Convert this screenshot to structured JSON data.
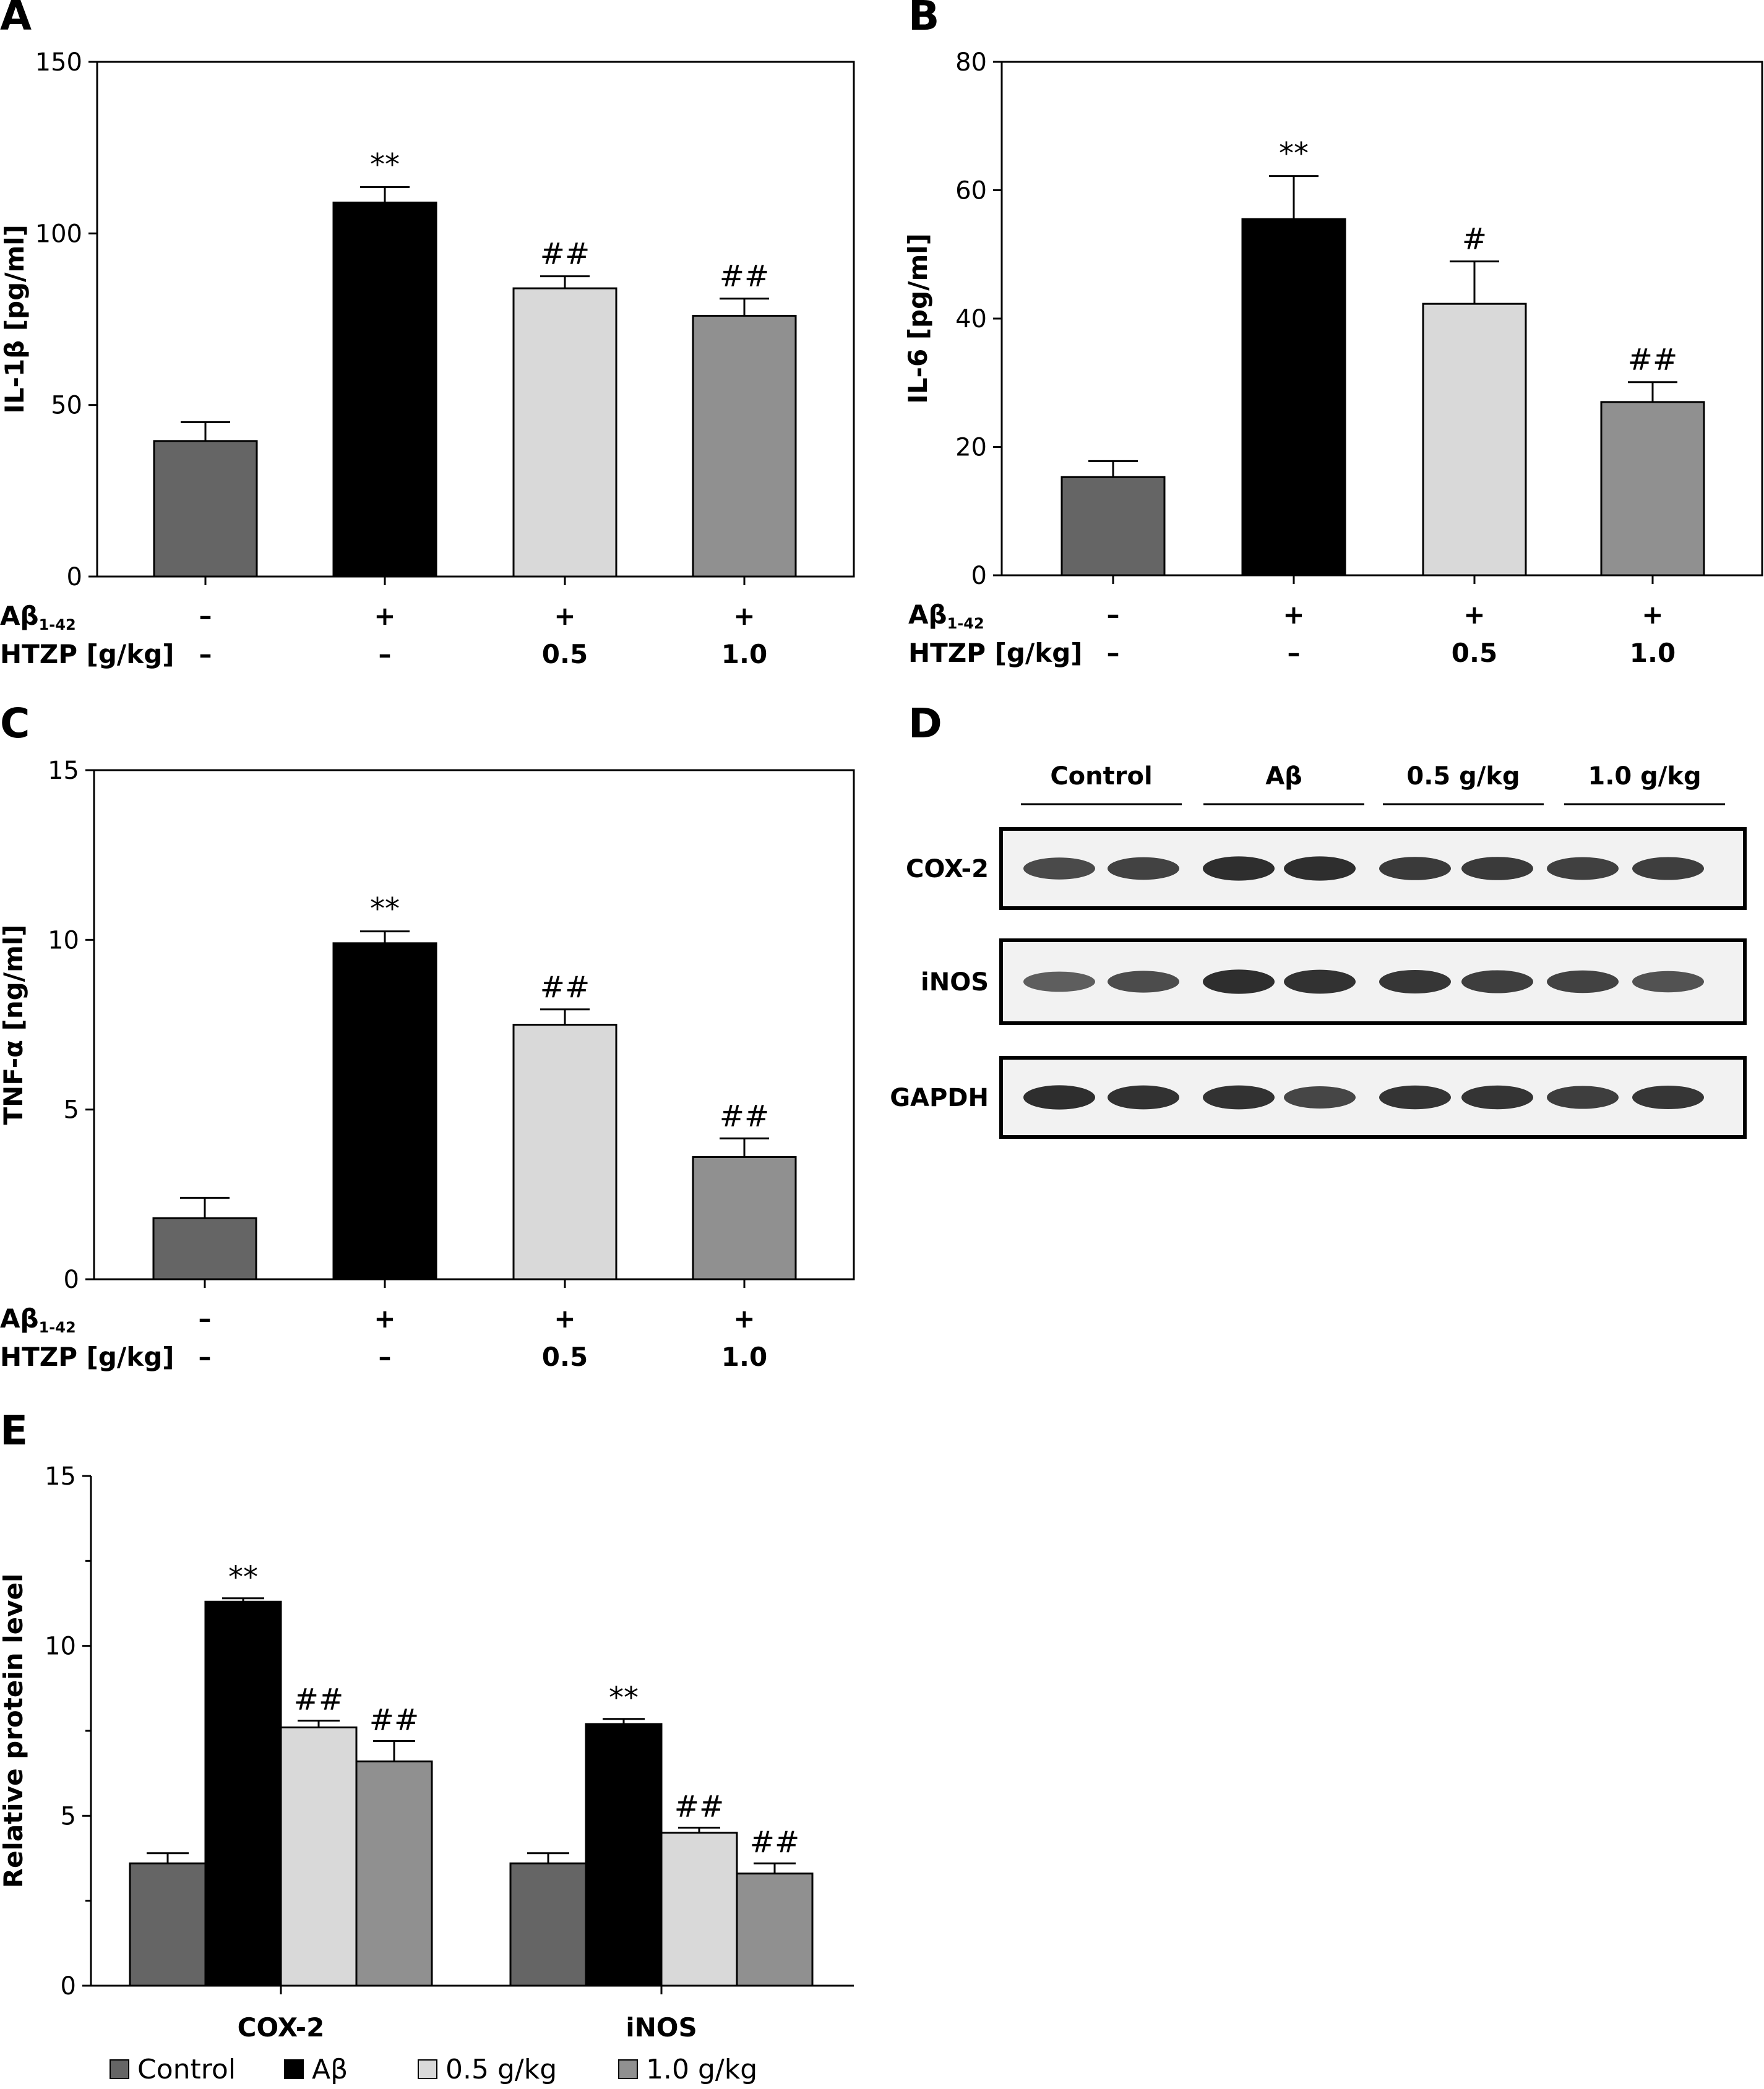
{
  "colors": {
    "control": "#656565",
    "abeta": "#000000",
    "dose_05": "#d9d9d9",
    "dose_10": "#909090",
    "axis": "#000000"
  },
  "conditions": {
    "abeta_row_label": "Aβ",
    "abeta_row_sub": "1-42",
    "htzp_row_label": "HTZP [g/kg]",
    "abeta_values": [
      "–",
      "+",
      "+",
      "+"
    ],
    "htzp_values": [
      "–",
      "–",
      "0.5",
      "1.0"
    ]
  },
  "chart_data": [
    {
      "panel": "A",
      "type": "bar",
      "ylabel": "IL-1β [pg/ml]",
      "ylim": [
        0,
        150
      ],
      "yticks": [
        0,
        50,
        100,
        150
      ],
      "categories": [
        "Control",
        "Aβ",
        "0.5 g/kg",
        "1.0 g/kg"
      ],
      "values": [
        39.5,
        109,
        84,
        76
      ],
      "errors": [
        5.5,
        4.5,
        3.5,
        5
      ],
      "significance": [
        "",
        "**",
        "##",
        "##"
      ]
    },
    {
      "panel": "B",
      "type": "bar",
      "ylabel": "IL-6 [pg/ml]",
      "ylim": [
        0,
        80
      ],
      "yticks": [
        0,
        20,
        40,
        60,
        80
      ],
      "categories": [
        "Control",
        "Aβ",
        "0.5 g/kg",
        "1.0 g/kg"
      ],
      "values": [
        15.3,
        55.5,
        42.3,
        27
      ],
      "errors": [
        2.5,
        6.7,
        6.6,
        3.1
      ],
      "significance": [
        "",
        "**",
        "#",
        "##"
      ]
    },
    {
      "panel": "C",
      "type": "bar",
      "ylabel": "TNF-α [ng/ml]",
      "ylim": [
        0,
        15
      ],
      "yticks": [
        0,
        5,
        10,
        15
      ],
      "categories": [
        "Control",
        "Aβ",
        "0.5 g/kg",
        "1.0 g/kg"
      ],
      "values": [
        1.8,
        9.9,
        7.5,
        3.6
      ],
      "errors": [
        0.6,
        0.35,
        0.45,
        0.55
      ],
      "significance": [
        "",
        "**",
        "##",
        "##"
      ]
    },
    {
      "panel": "E",
      "type": "bar",
      "ylabel": "Relative protein level",
      "ylim": [
        0,
        15
      ],
      "yticks": [
        0,
        5,
        10,
        15
      ],
      "categories": [
        "COX-2",
        "iNOS"
      ],
      "series": [
        {
          "name": "Control",
          "values": [
            3.6,
            3.6
          ],
          "errors": [
            0.3,
            0.3
          ],
          "significance": [
            "",
            ""
          ]
        },
        {
          "name": "Aβ",
          "values": [
            11.3,
            7.7
          ],
          "errors": [
            0.1,
            0.15
          ],
          "significance": [
            "**",
            "**"
          ]
        },
        {
          "name": "0.5 g/kg",
          "values": [
            7.6,
            4.5
          ],
          "errors": [
            0.2,
            0.15
          ],
          "significance": [
            "##",
            "##"
          ]
        },
        {
          "name": "1.0 g/kg",
          "values": [
            6.6,
            3.3
          ],
          "errors": [
            0.6,
            0.3
          ],
          "significance": [
            "##",
            "##"
          ]
        }
      ],
      "legend_position": "bottom"
    }
  ],
  "blot": {
    "panel": "D",
    "groups": [
      "Control",
      "Aβ",
      "0.5 g/kg",
      "1.0 g/kg"
    ],
    "rows": [
      {
        "label": "COX-2",
        "intensities": [
          0.72,
          0.78,
          0.95,
          0.95,
          0.85,
          0.85,
          0.8,
          0.82
        ]
      },
      {
        "label": "iNOS",
        "intensities": [
          0.55,
          0.7,
          0.95,
          0.92,
          0.88,
          0.82,
          0.78,
          0.65
        ]
      },
      {
        "label": "GAPDH",
        "intensities": [
          0.95,
          0.92,
          0.92,
          0.75,
          0.9,
          0.9,
          0.82,
          0.88
        ]
      }
    ]
  },
  "legend": [
    {
      "label": "Control",
      "color_key": "control"
    },
    {
      "label": "Aβ",
      "color_key": "abeta"
    },
    {
      "label": "0.5 g/kg",
      "color_key": "dose_05"
    },
    {
      "label": "1.0 g/kg",
      "color_key": "dose_10"
    }
  ]
}
